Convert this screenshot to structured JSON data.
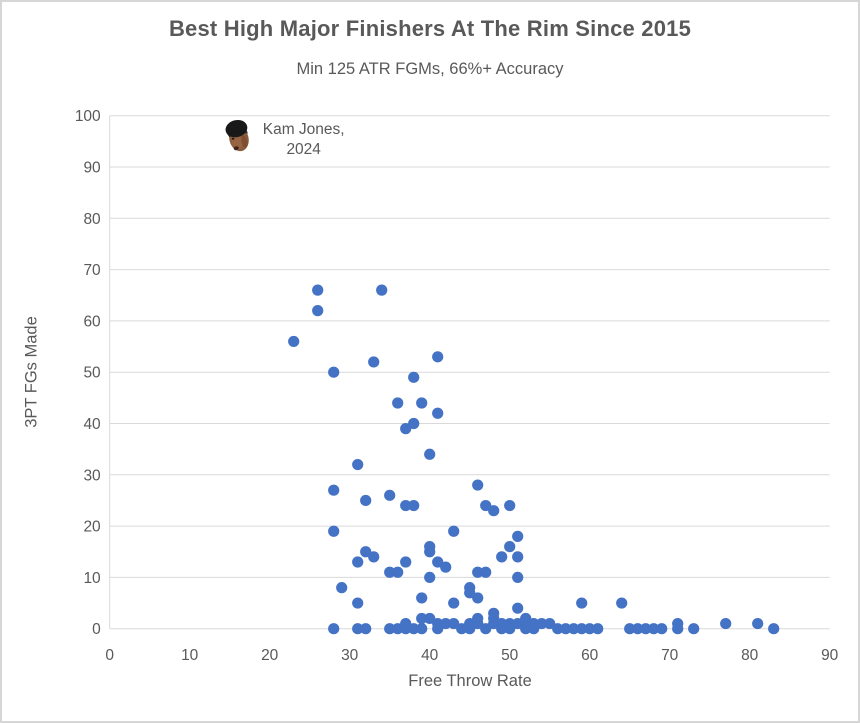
{
  "chart_data": {
    "type": "scatter",
    "title": "Best High Major Finishers At The Rim Since 2015",
    "subtitle": "Min 125 ATR FGMs, 66%+ Accuracy",
    "xlabel": "Free Throw Rate",
    "ylabel": "3PT FGs Made",
    "xlim": [
      0,
      90
    ],
    "ylim": [
      0,
      100
    ],
    "xticks": [
      0,
      10,
      20,
      30,
      40,
      50,
      60,
      70,
      80,
      90
    ],
    "yticks": [
      0,
      10,
      20,
      30,
      40,
      50,
      60,
      70,
      80,
      90,
      100
    ],
    "grid": "horizontal",
    "legend": "none",
    "marker_color": "#4472C4",
    "points": [
      [
        23,
        56
      ],
      [
        26,
        66
      ],
      [
        26,
        62
      ],
      [
        34,
        66
      ],
      [
        28,
        50
      ],
      [
        33,
        52
      ],
      [
        38,
        49
      ],
      [
        41,
        53
      ],
      [
        36,
        44
      ],
      [
        39,
        44
      ],
      [
        41,
        42
      ],
      [
        38,
        40
      ],
      [
        37,
        39
      ],
      [
        40,
        34
      ],
      [
        31,
        32
      ],
      [
        28,
        27
      ],
      [
        32,
        25
      ],
      [
        35,
        26
      ],
      [
        37,
        24
      ],
      [
        38,
        24
      ],
      [
        46,
        28
      ],
      [
        47,
        24
      ],
      [
        48,
        23
      ],
      [
        50,
        24
      ],
      [
        28,
        19
      ],
      [
        43,
        19
      ],
      [
        51,
        18
      ],
      [
        50,
        16
      ],
      [
        40,
        16
      ],
      [
        40,
        15
      ],
      [
        32,
        15
      ],
      [
        49,
        14
      ],
      [
        51,
        14
      ],
      [
        33,
        14
      ],
      [
        37,
        13
      ],
      [
        41,
        13
      ],
      [
        31,
        13
      ],
      [
        42,
        12
      ],
      [
        35,
        11
      ],
      [
        36,
        11
      ],
      [
        46,
        11
      ],
      [
        47,
        11
      ],
      [
        40,
        10
      ],
      [
        51,
        10
      ],
      [
        29,
        8
      ],
      [
        45,
        8
      ],
      [
        45,
        7
      ],
      [
        39,
        6
      ],
      [
        46,
        6
      ],
      [
        31,
        5
      ],
      [
        43,
        5
      ],
      [
        59,
        5
      ],
      [
        64,
        5
      ],
      [
        51,
        4
      ],
      [
        48,
        3
      ],
      [
        48,
        2
      ],
      [
        28,
        0
      ],
      [
        31,
        0
      ],
      [
        32,
        0
      ],
      [
        35,
        0
      ],
      [
        36,
        0
      ],
      [
        37,
        0
      ],
      [
        37,
        1
      ],
      [
        38,
        0
      ],
      [
        39,
        0
      ],
      [
        39,
        2
      ],
      [
        40,
        2
      ],
      [
        41,
        0
      ],
      [
        41,
        1
      ],
      [
        42,
        1
      ],
      [
        43,
        1
      ],
      [
        44,
        0
      ],
      [
        45,
        0
      ],
      [
        45,
        1
      ],
      [
        46,
        1
      ],
      [
        46,
        2
      ],
      [
        47,
        0
      ],
      [
        48,
        1
      ],
      [
        49,
        0
      ],
      [
        49,
        1
      ],
      [
        50,
        0
      ],
      [
        50,
        1
      ],
      [
        51,
        1
      ],
      [
        52,
        0
      ],
      [
        52,
        1
      ],
      [
        52,
        2
      ],
      [
        53,
        0
      ],
      [
        53,
        1
      ],
      [
        54,
        1
      ],
      [
        55,
        1
      ],
      [
        56,
        0
      ],
      [
        57,
        0
      ],
      [
        58,
        0
      ],
      [
        59,
        0
      ],
      [
        60,
        0
      ],
      [
        61,
        0
      ],
      [
        65,
        0
      ],
      [
        66,
        0
      ],
      [
        67,
        0
      ],
      [
        68,
        0
      ],
      [
        69,
        0
      ],
      [
        71,
        0
      ],
      [
        71,
        1
      ],
      [
        73,
        0
      ],
      [
        77,
        1
      ],
      [
        81,
        1
      ],
      [
        83,
        0
      ]
    ],
    "annotation": {
      "label_line1": "Kam Jones,",
      "label_line2": "2024",
      "x": 16,
      "y": 96,
      "marker": "player-face-photo"
    }
  },
  "colors": {
    "accent": "#4472C4",
    "text": "#595959",
    "gridline": "#D9D9D9",
    "frame_border": "#D6D6D6"
  }
}
